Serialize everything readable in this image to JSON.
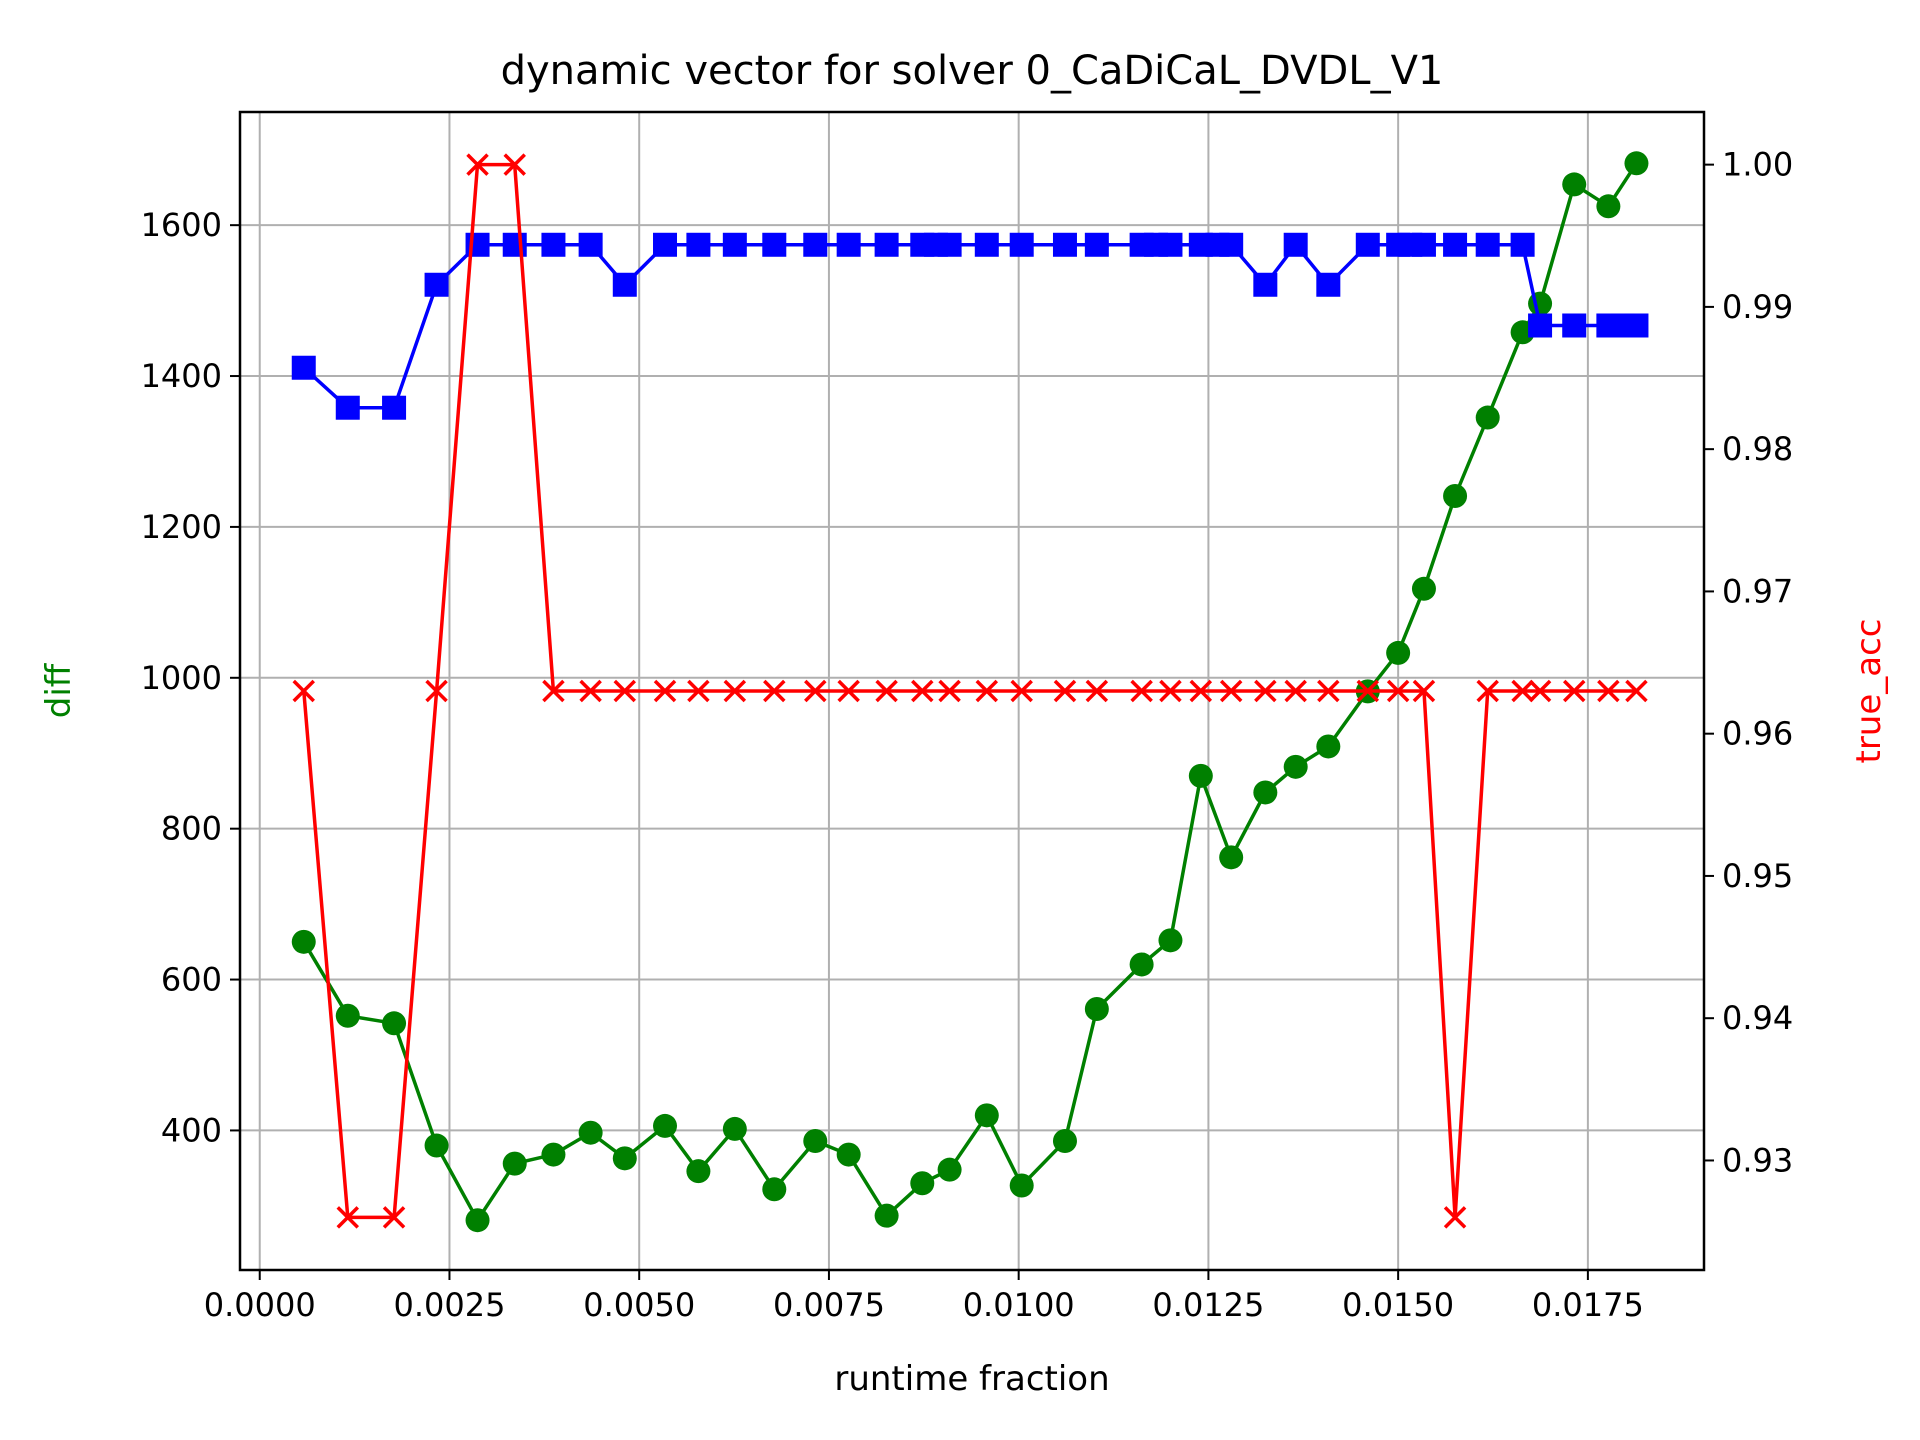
{
  "chart_data": {
    "type": "line",
    "title": "dynamic vector for solver 0_CaDiCaL_DVDL_V1",
    "xlabel": "runtime fraction",
    "ylabel": "diff",
    "ylabel_color": "#008000",
    "y2label": "true_acc",
    "y2label_color": "#ff0000",
    "xlim": [
      -0.00026,
      0.01903
    ],
    "ylim": [
      215,
      1750
    ],
    "y2lim": [
      0.9223,
      1.0037
    ],
    "grid": true,
    "xticks": [
      "0.0000",
      "0.0025",
      "0.0050",
      "0.0075",
      "0.0100",
      "0.0125",
      "0.0150",
      "0.0175"
    ],
    "xtick_values": [
      0,
      0.0025,
      0.005,
      0.0075,
      0.01,
      0.0125,
      0.015,
      0.0175
    ],
    "yticks": [
      "400",
      "600",
      "800",
      "1000",
      "1200",
      "1400",
      "1600"
    ],
    "ytick_values": [
      400,
      600,
      800,
      1000,
      1200,
      1400,
      1600
    ],
    "y2ticks": [
      "0.93",
      "0.94",
      "0.95",
      "0.96",
      "0.97",
      "0.98",
      "0.99",
      "1.00"
    ],
    "y2tick_values": [
      0.93,
      0.94,
      0.95,
      0.96,
      0.97,
      0.98,
      0.99,
      1.0
    ],
    "series": [
      {
        "axis": "left",
        "color": "#008000",
        "marker": "circle",
        "x": [
          0.00058,
          0.00116,
          0.00177,
          0.00233,
          0.00287,
          0.00336,
          0.00387,
          0.00436,
          0.00481,
          0.00534,
          0.00578,
          0.00626,
          0.00678,
          0.00732,
          0.00776,
          0.00826,
          0.00873,
          0.00909,
          0.00958,
          0.01004,
          0.01061,
          0.01103,
          0.01162,
          0.012,
          0.0124,
          0.0128,
          0.01325,
          0.01365,
          0.01408,
          0.0146,
          0.015,
          0.01534,
          0.01575,
          0.01618,
          0.01664,
          0.01687,
          0.01732,
          0.01777,
          0.01814
        ],
        "y": [
          650,
          552,
          542,
          380,
          281,
          356,
          368,
          397,
          363,
          406,
          346,
          402,
          322,
          386,
          368,
          287,
          330,
          348,
          420,
          327,
          386,
          561,
          620,
          652,
          870,
          762,
          848,
          882,
          909,
          982,
          1033,
          1118,
          1241,
          1345,
          1458,
          1496,
          1654,
          1625,
          1682
        ]
      },
      {
        "axis": "left",
        "color": "#0000ff",
        "marker": "square",
        "x": [
          0.00058,
          0.00116,
          0.00177,
          0.00233,
          0.00287,
          0.00336,
          0.00387,
          0.00436,
          0.00481,
          0.00534,
          0.00578,
          0.00626,
          0.00678,
          0.00732,
          0.00776,
          0.00826,
          0.00873,
          0.00891,
          0.00909,
          0.00958,
          0.01004,
          0.01061,
          0.01103,
          0.01162,
          0.01181,
          0.012,
          0.0124,
          0.01262,
          0.0128,
          0.01325,
          0.01365,
          0.01408,
          0.0146,
          0.015,
          0.01516,
          0.01534,
          0.01575,
          0.01618,
          0.01664,
          0.01687,
          0.01732,
          0.01777,
          0.01796,
          0.01814
        ],
        "y": [
          1411,
          1358,
          1358,
          1521,
          1574,
          1574,
          1574,
          1574,
          1521,
          1574,
          1574,
          1574,
          1574,
          1574,
          1574,
          1574,
          1574,
          1574,
          1574,
          1574,
          1574,
          1574,
          1574,
          1574,
          1574,
          1574,
          1574,
          1574,
          1574,
          1521,
          1574,
          1521,
          1574,
          1574,
          1574,
          1574,
          1574,
          1574,
          1574,
          1467,
          1467,
          1467,
          1467,
          1467
        ]
      },
      {
        "axis": "right",
        "color": "#ff0000",
        "marker": "x",
        "x": [
          0.00058,
          0.00116,
          0.00177,
          0.00233,
          0.00287,
          0.00336,
          0.00387,
          0.00436,
          0.00481,
          0.00534,
          0.00578,
          0.00626,
          0.00678,
          0.00732,
          0.00776,
          0.00826,
          0.00873,
          0.00909,
          0.00958,
          0.01004,
          0.01061,
          0.01103,
          0.01162,
          0.012,
          0.0124,
          0.0128,
          0.01325,
          0.01365,
          0.01408,
          0.0146,
          0.015,
          0.01534,
          0.01575,
          0.01618,
          0.01664,
          0.01687,
          0.01732,
          0.01777,
          0.01814
        ],
        "y": [
          0.963,
          0.926,
          0.926,
          0.963,
          1.0,
          1.0,
          0.963,
          0.963,
          0.963,
          0.963,
          0.963,
          0.963,
          0.963,
          0.963,
          0.963,
          0.963,
          0.963,
          0.963,
          0.963,
          0.963,
          0.963,
          0.963,
          0.963,
          0.963,
          0.963,
          0.963,
          0.963,
          0.963,
          0.963,
          0.963,
          0.963,
          0.963,
          0.926,
          0.963,
          0.963,
          0.963,
          0.963,
          0.963,
          0.963
        ]
      }
    ]
  }
}
